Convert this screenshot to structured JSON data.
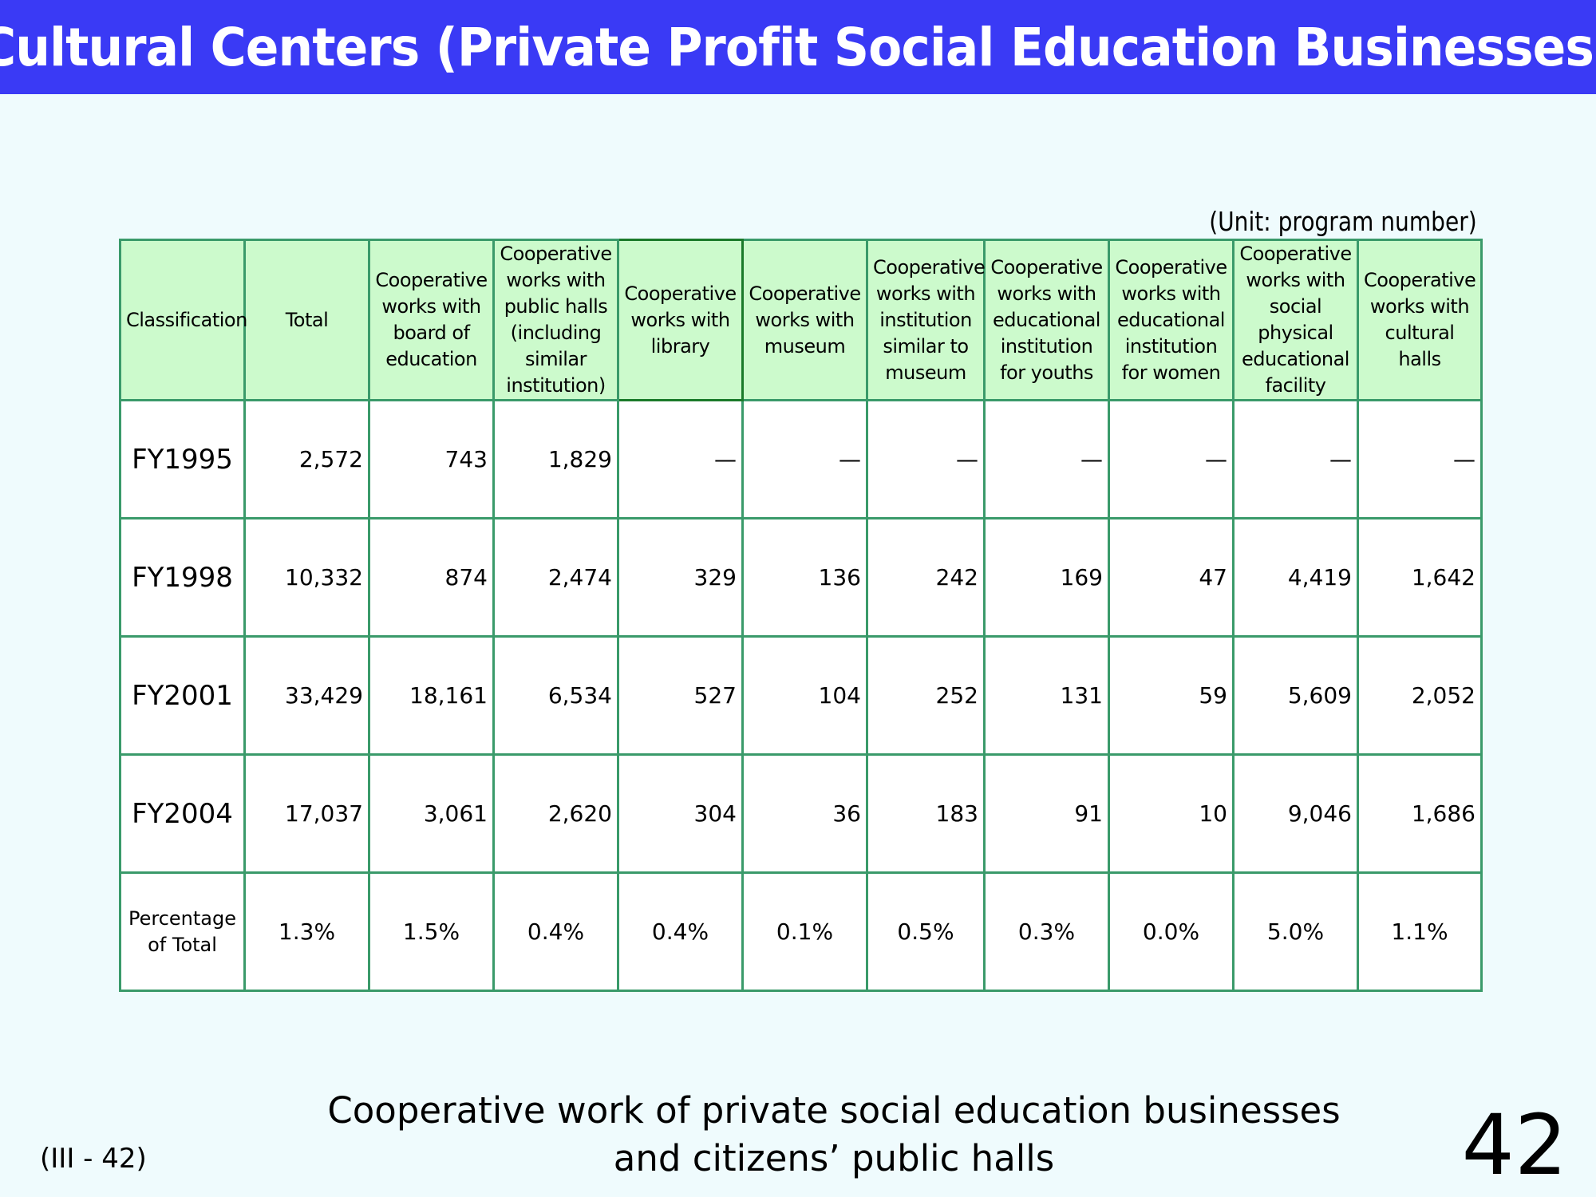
{
  "title": "Cultural Centers (Private Profit Social Education Businesses)",
  "unit_note": "(Unit: program number)",
  "table": {
    "headers": [
      "Classification",
      "Total",
      "Cooperative works with board of education",
      "Cooperative works with public halls (including similar institution)",
      "Cooperative works with library",
      "Cooperative works with museum",
      "Cooperative works with institution similar to museum",
      "Cooperative works with educational institution for youths",
      "Cooperative works with educational institution for women",
      "Cooperative works with social physical educational facility",
      "Cooperative works with cultural halls"
    ],
    "rows": [
      {
        "label": "FY1995",
        "cells": [
          "2,572",
          "743",
          "1,829",
          "—",
          "—",
          "—",
          "—",
          "—",
          "—",
          "—"
        ]
      },
      {
        "label": "FY1998",
        "cells": [
          "10,332",
          "874",
          "2,474",
          "329",
          "136",
          "242",
          "169",
          "47",
          "4,419",
          "1,642"
        ]
      },
      {
        "label": "FY2001",
        "cells": [
          "33,429",
          "18,161",
          "6,534",
          "527",
          "104",
          "252",
          "131",
          "59",
          "5,609",
          "2,052"
        ]
      },
      {
        "label": "FY2004",
        "cells": [
          "17,037",
          "3,061",
          "2,620",
          "304",
          "36",
          "183",
          "91",
          "10",
          "9,046",
          "1,686"
        ]
      },
      {
        "label": "Percentage of Total",
        "cells": [
          "1.3%",
          "1.5%",
          "0.4%",
          "0.4%",
          "0.1%",
          "0.5%",
          "0.3%",
          "0.0%",
          "5.0%",
          "1.1%"
        ]
      }
    ]
  },
  "caption": {
    "line1": "Cooperative work of private social education businesses",
    "line2": "and citizens’ public halls"
  },
  "section_ref": "(III - 42)",
  "page_number": "42",
  "colors": {
    "title_bg": "#3a3af5",
    "header_bg": "#ccfacc",
    "border": "#3a9a6a",
    "page_bg": "#effbfd"
  }
}
